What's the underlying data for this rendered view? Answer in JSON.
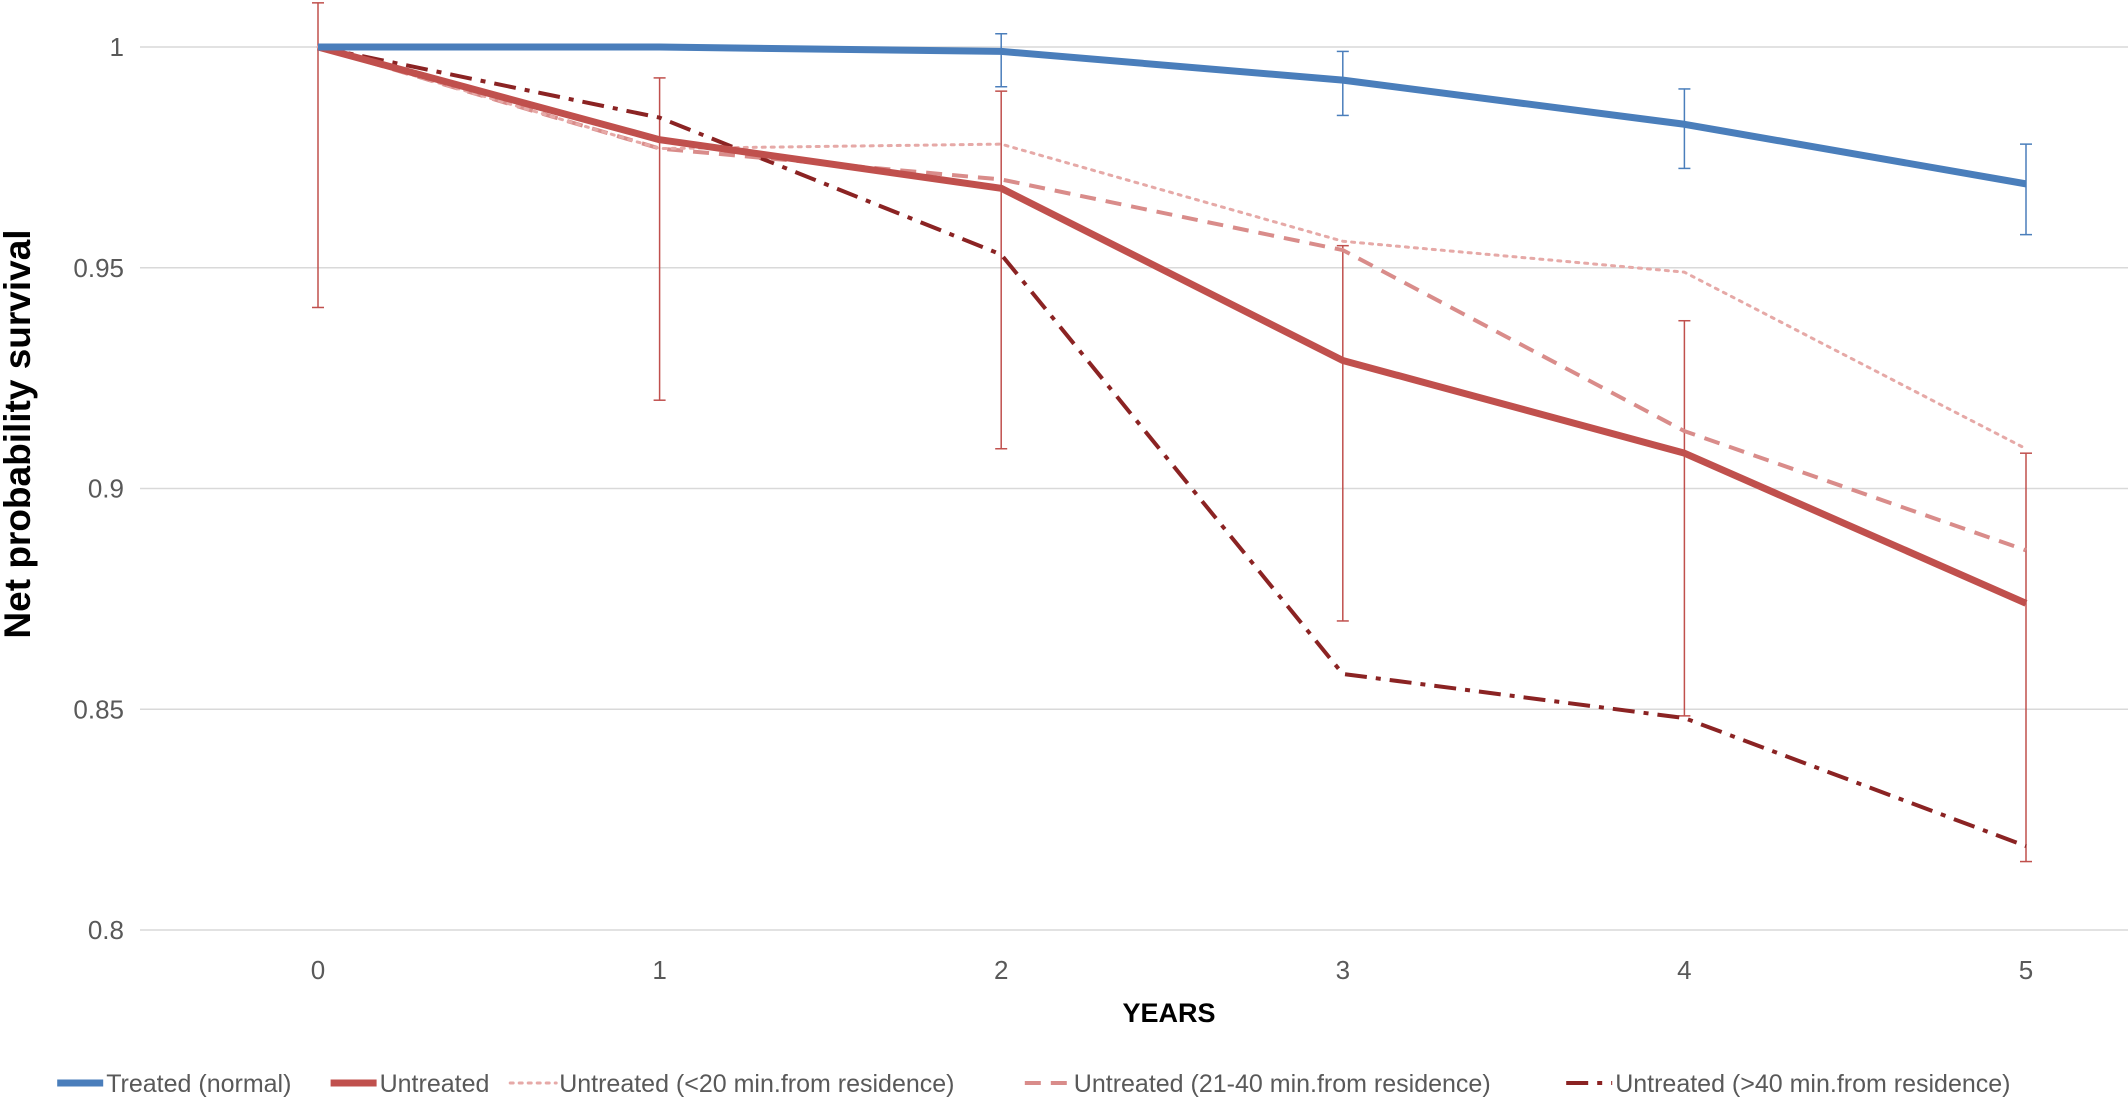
{
  "chart_data": {
    "type": "line",
    "xlabel": "YEARS",
    "ylabel": "Net probability survival",
    "x": [
      0,
      1,
      2,
      3,
      4,
      5
    ],
    "x_tick_labels": [
      "0",
      "1",
      "2",
      "3",
      "4",
      "5"
    ],
    "ylim": [
      0.8,
      1.0
    ],
    "y_ticks": [
      0.8,
      0.85,
      0.9,
      0.95,
      1.0
    ],
    "y_tick_labels": [
      "0.8",
      "0.85",
      "0.9",
      "0.95",
      "1"
    ],
    "grid": "horizontal",
    "legend_position": "bottom",
    "series": [
      {
        "name": "Treated (normal)",
        "values": [
          1.0,
          1.0,
          0.999,
          0.9925,
          0.9825,
          0.969
        ],
        "color": "#4a7ebb",
        "style": "solid-thick",
        "error_bars": [
          null,
          null,
          [
            0.991,
            1.003
          ],
          [
            0.9845,
            0.999
          ],
          [
            0.9725,
            0.9905
          ],
          [
            0.9575,
            0.978
          ]
        ]
      },
      {
        "name": "Untreated",
        "values": [
          1.0,
          0.979,
          0.968,
          0.929,
          0.908,
          0.874
        ],
        "color": "#c0504d",
        "style": "solid-thick",
        "error_bars": [
          [
            0.941,
            1.01
          ],
          [
            0.92,
            0.993
          ],
          [
            0.909,
            0.99
          ],
          [
            0.87,
            0.955
          ],
          [
            0.8485,
            0.938
          ],
          [
            0.8155,
            0.908
          ]
        ]
      },
      {
        "name": "Untreated (<20 min.from residence)",
        "values": [
          1.0,
          0.977,
          0.978,
          0.956,
          0.949,
          0.909
        ],
        "color": "#e6a9a7",
        "style": "dotted"
      },
      {
        "name": "Untreated (21-40 min.from residence)",
        "values": [
          1.0,
          0.977,
          0.97,
          0.954,
          0.913,
          0.886
        ],
        "color": "#d98c8a",
        "style": "dashed"
      },
      {
        "name": "Untreated (>40 min.from residence)",
        "values": [
          1.0,
          0.984,
          0.953,
          0.858,
          0.848,
          0.819
        ],
        "color": "#8b2323",
        "style": "dash-dot"
      }
    ]
  }
}
